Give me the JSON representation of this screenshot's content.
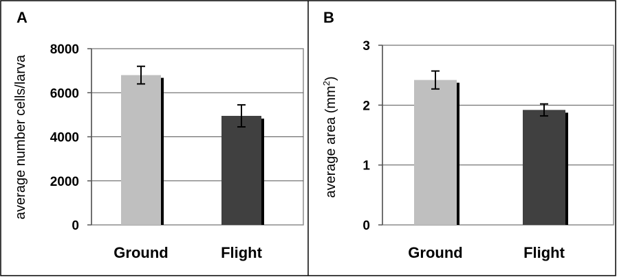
{
  "chart_data": [
    {
      "panel": "A",
      "type": "bar",
      "categories": [
        "Ground",
        "Flight"
      ],
      "values": [
        6800,
        4950
      ],
      "error": [
        400,
        500
      ],
      "colors": [
        "#bfbfbf",
        "#404040"
      ],
      "ylabel": "average number cells/larva",
      "ylim": [
        0,
        8000
      ],
      "yticks": [
        "0",
        "2000",
        "4000",
        "6000",
        "8000"
      ],
      "tick_values": [
        0,
        2000,
        4000,
        6000,
        8000
      ],
      "grid": true
    },
    {
      "panel": "B",
      "type": "bar",
      "categories": [
        "Ground",
        "Flight"
      ],
      "values": [
        2.42,
        1.92
      ],
      "error": [
        0.15,
        0.1
      ],
      "colors": [
        "#bfbfbf",
        "#404040"
      ],
      "ylabel_main": "average area (mm",
      "ylabel_sup": "2",
      "ylabel_end": ")",
      "ylim": [
        0,
        3
      ],
      "yticks": [
        "0",
        "1",
        "2",
        "3"
      ],
      "tick_values": [
        0,
        1,
        2,
        3
      ],
      "grid": true
    }
  ]
}
